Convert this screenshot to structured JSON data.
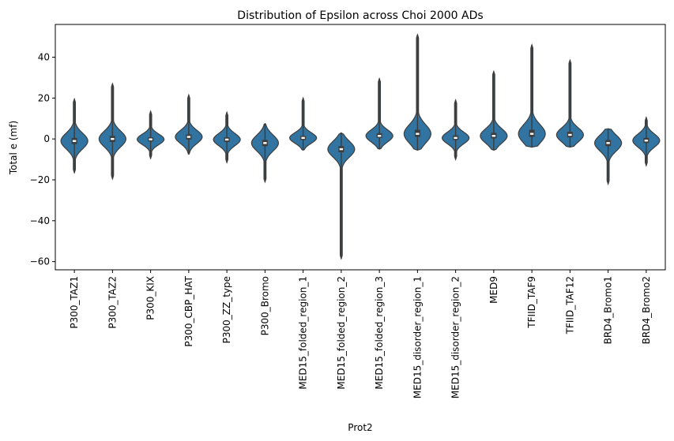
{
  "chart_data": {
    "type": "violin",
    "title": "Distribution of Epsilon across Choi 2000 ADs",
    "xlabel": "Prot2",
    "ylabel": "Total e (mf)",
    "ylim": [
      -64,
      56
    ],
    "yticks": [
      -60,
      -40,
      -20,
      0,
      20,
      40
    ],
    "ytick_labels": [
      "−60",
      "−40",
      "−20",
      "0",
      "20",
      "40"
    ],
    "grid": false,
    "legend": "none",
    "violin_color": "#3274a1",
    "categories": [
      "P300_TAZ1",
      "P300_TAZ2",
      "P300_KIX",
      "P300_CBP_HAT",
      "P300_ZZ_type",
      "P300_Bromo",
      "MED15_folded_region_1",
      "MED15_folded_region_2",
      "MED15_folded_region_3",
      "MED15_disorder_region_1",
      "MED15_disorder_region_2",
      "MED9",
      "TFIID_TAF9",
      "TFIID_TAF12",
      "BRD4_Bromo1",
      "BRD4_Bromo2"
    ],
    "series": [
      {
        "min": -16.5,
        "q1": -2.5,
        "median": -1,
        "q3": 0.5,
        "max": 19.5
      },
      {
        "min": -19.5,
        "q1": -1.5,
        "median": 0,
        "q3": 1.5,
        "max": 27
      },
      {
        "min": -9.5,
        "q1": -1.2,
        "median": -0.2,
        "q3": 0.8,
        "max": 13.5
      },
      {
        "min": -7.5,
        "q1": -0.3,
        "median": 1,
        "q3": 2.2,
        "max": 21.5
      },
      {
        "min": -11.5,
        "q1": -1.5,
        "median": -0.3,
        "q3": 0.8,
        "max": 13
      },
      {
        "min": -21,
        "q1": -3.5,
        "median": -2,
        "q3": -0.5,
        "max": 7.5
      },
      {
        "min": -5.5,
        "q1": -0.5,
        "median": 0.5,
        "q3": 1.5,
        "max": 20
      },
      {
        "min": -58.5,
        "q1": -6.5,
        "median": -5,
        "q3": -3.5,
        "max": 3
      },
      {
        "min": -5,
        "q1": 0.5,
        "median": 1.5,
        "q3": 2.8,
        "max": 29.5
      },
      {
        "min": -5.5,
        "q1": 1,
        "median": 2.5,
        "q3": 4.5,
        "max": 51
      },
      {
        "min": -10,
        "q1": -0.5,
        "median": 0.5,
        "q3": 1.7,
        "max": 19
      },
      {
        "min": -5.5,
        "q1": 0.3,
        "median": 1.5,
        "q3": 3,
        "max": 33
      },
      {
        "min": -4,
        "q1": 1,
        "median": 2.5,
        "q3": 4.5,
        "max": 46
      },
      {
        "min": -4,
        "q1": 0.8,
        "median": 2,
        "q3": 3.5,
        "max": 38.5
      },
      {
        "min": -22,
        "q1": -3.5,
        "median": -2,
        "q3": -0.5,
        "max": 5
      },
      {
        "min": -13,
        "q1": -2,
        "median": -0.8,
        "q3": 0.5,
        "max": 10.5
      }
    ]
  }
}
